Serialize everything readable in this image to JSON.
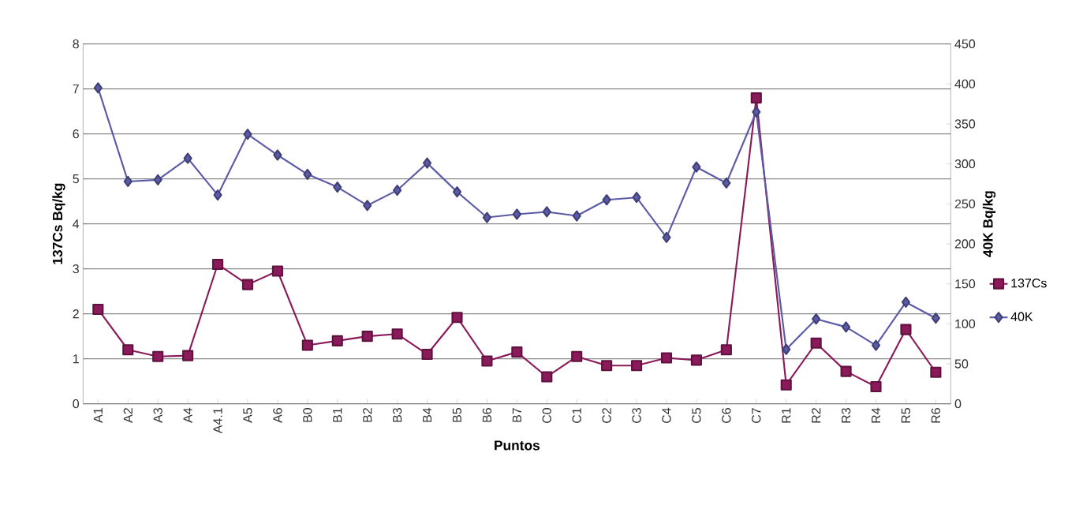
{
  "chart_data": {
    "type": "line",
    "xlabel": "Puntos",
    "ylabel": "137Cs Bq/kg",
    "y2label": "40K Bq/kg",
    "categories": [
      "A1",
      "A2",
      "A3",
      "A4",
      "A4.1",
      "A5",
      "A6",
      "B0",
      "B1",
      "B2",
      "B3",
      "B4",
      "B5",
      "B6",
      "B7",
      "C0",
      "C1",
      "C2",
      "C3",
      "C4",
      "C5",
      "C6",
      "C7",
      "R1",
      "R2",
      "R3",
      "R4",
      "R5",
      "R6"
    ],
    "series": [
      {
        "name": "137Cs",
        "color": "#8b1a5a",
        "marker": "square",
        "values": [
          2.1,
          1.2,
          1.05,
          1.07,
          3.1,
          2.65,
          2.95,
          1.3,
          1.4,
          1.5,
          1.55,
          1.1,
          1.92,
          0.95,
          1.15,
          0.6,
          1.05,
          0.85,
          0.85,
          1.02,
          0.97,
          1.2,
          6.8,
          0.42,
          1.35,
          0.72,
          0.38,
          1.65,
          0.7
        ]
      },
      {
        "name": "40K",
        "color": "#5b5ba8",
        "marker": "diamond",
        "axis": "y2",
        "values": [
          395,
          278,
          280,
          307,
          261,
          337,
          311,
          287,
          271,
          248,
          267,
          301,
          265,
          233,
          237,
          240,
          235,
          255,
          258,
          208,
          296,
          276,
          365,
          68,
          106,
          96,
          73,
          127,
          107
        ]
      }
    ],
    "ylim": [
      0,
      8
    ],
    "yticks": [
      0,
      1,
      2,
      3,
      4,
      5,
      6,
      7,
      8
    ],
    "y2lim": [
      0,
      450
    ],
    "y2ticks": [
      0,
      50,
      100,
      150,
      200,
      250,
      300,
      350,
      400,
      450
    ],
    "grid": "y",
    "legend": "right",
    "line_style": "solid"
  }
}
